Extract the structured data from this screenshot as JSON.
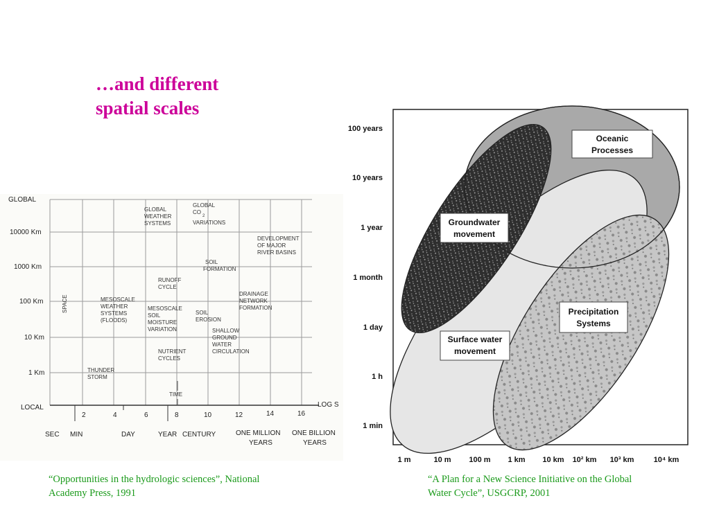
{
  "title": {
    "line1": "…and different",
    "line2": "spatial scales"
  },
  "left_figure": {
    "y_labels": [
      "GLOBAL",
      "10000 Km",
      "1000 Km",
      "100 Km",
      "10 Km",
      "1 Km",
      "LOCAL"
    ],
    "x_numbers": [
      "2",
      "4",
      "6",
      "8",
      "10",
      "12",
      "14",
      "16"
    ],
    "x_axis_title": "LOG S",
    "time_labels": [
      "SEC",
      "MIN",
      "DAY",
      "YEAR",
      "CENTURY",
      "ONE MILLION",
      "YEARS",
      "ONE BILLION",
      "YEARS"
    ],
    "space_label": "SPACE",
    "processes": {
      "global_weather": [
        "GLOBAL",
        "WEATHER",
        "SYSTEMS"
      ],
      "global_co2": [
        "GLOBAL",
        "CO",
        "VARIATIONS"
      ],
      "co2_subscript": "2",
      "river_basins": [
        "DEVELOPMENT",
        "OF MAJOR",
        "RIVER BASINS"
      ],
      "soil_formation": [
        "SOIL",
        "FORMATION"
      ],
      "runoff": [
        "RUNOFF",
        "CYCLE"
      ],
      "drainage": [
        "DRAINAGE",
        "NETWORK",
        "FORMATION"
      ],
      "mesoscale_weather": [
        "MESOSCALE",
        "WEATHER",
        "SYSTEMS",
        "(FLOODS)"
      ],
      "soil_moisture": [
        "MESOSCALE",
        "SOIL",
        "MOISTURE",
        "VARIATION"
      ],
      "soil_erosion": [
        "SOIL",
        "EROSION"
      ],
      "groundwater_circ": [
        "SHALLOW",
        "GROUND",
        "WATER",
        "CIRCULATION"
      ],
      "nutrient": [
        "NUTRIENT",
        "CYCLES"
      ],
      "thunderstorm": [
        "THUNDER",
        "STORM"
      ],
      "time_label": "TIME"
    }
  },
  "right_figure": {
    "y_labels": [
      "100 years",
      "10 years",
      "1 year",
      "1 month",
      "1 day",
      "1 h",
      "1 min"
    ],
    "x_labels": [
      "1 m",
      "10 m",
      "100 m",
      "1 km",
      "10 km",
      "10² km",
      "10³ km",
      "10⁴ km"
    ],
    "boxes": {
      "oceanic": [
        "Oceanic",
        "Processes"
      ],
      "groundwater": [
        "Groundwater",
        "movement"
      ],
      "precipitation": [
        "Precipitation",
        "Systems"
      ],
      "surface": [
        "Surface water",
        "movement"
      ]
    },
    "colors": {
      "oceanic": "#a9a9a9",
      "surface": "#e6e6e6",
      "groundwater": "#3c3c3c",
      "precipitation": "#bdbdbd"
    }
  },
  "captions": {
    "left": [
      "“Opportunities in the hydrologic sciences”, National",
      "Academy Press, 1991"
    ],
    "right": [
      "“A Plan for a New Science Initiative on the Global",
      "Water Cycle”, USGCRP, 2001"
    ]
  }
}
